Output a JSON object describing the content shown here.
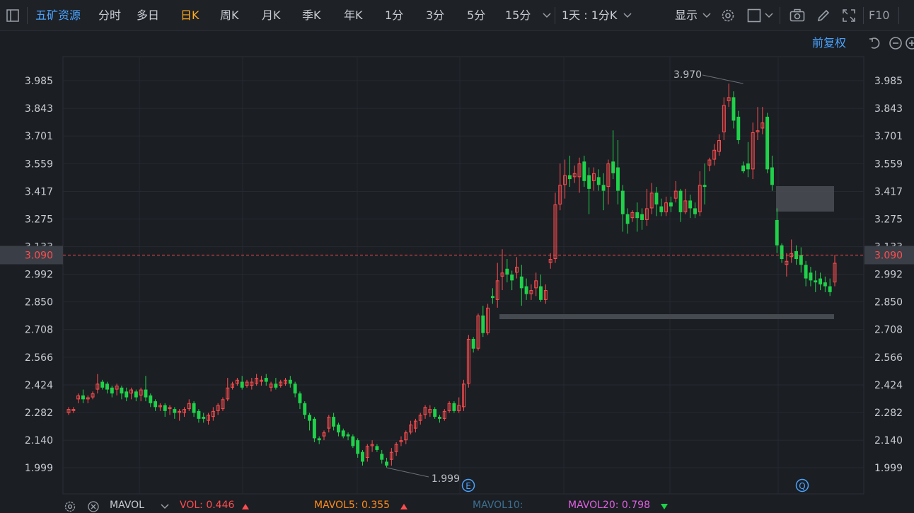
{
  "toolbar": {
    "stock_name": "五矿资源",
    "periods": [
      "分时",
      "多日",
      "日K",
      "周K",
      "月K",
      "季K",
      "年K",
      "1分",
      "3分",
      "5分",
      "15分"
    ],
    "active_period": "日K",
    "interval": "1天 : 1分K",
    "display_label": "显示",
    "f10_label": "F10"
  },
  "restore": {
    "label": "前复权"
  },
  "axis": {
    "ticks": [
      "3.985",
      "3.843",
      "3.701",
      "3.559",
      "3.417",
      "3.275",
      "3.133",
      "2.992",
      "2.850",
      "2.708",
      "2.566",
      "2.424",
      "2.282",
      "2.140",
      "1.999"
    ],
    "current_price": "3.090"
  },
  "annotations": {
    "high": "3.970",
    "low": "1.999",
    "event_e": "E",
    "event_q": "Q"
  },
  "footer": {
    "indicator": "MAVOL",
    "vol_label": "VOL: 0.446",
    "mavol5_label": "MAVOL5: 0.355",
    "mavol10_label": "MAVOL10:",
    "mavol20_label": "MAVOL20: 0.798"
  },
  "colors": {
    "up": "#ff4d4f",
    "down": "#1fd24a",
    "accent": "#ffab1f",
    "link": "#4aa3ff",
    "mavol5": "#ff8c1a",
    "mavol10": "#3d6f91",
    "mavol20": "#e060e0"
  },
  "chart_data": {
    "type": "candlestick",
    "ylim": [
      1.999,
      3.985
    ],
    "current_price": 3.09,
    "candles": [
      [
        2.28,
        2.3,
        2.27,
        2.31
      ],
      [
        2.29,
        2.3,
        2.28,
        2.31
      ],
      [
        2.35,
        2.37,
        2.33,
        2.38
      ],
      [
        2.37,
        2.35,
        2.33,
        2.4
      ],
      [
        2.35,
        2.36,
        2.33,
        2.37
      ],
      [
        2.36,
        2.38,
        2.35,
        2.39
      ],
      [
        2.4,
        2.43,
        2.38,
        2.48
      ],
      [
        2.44,
        2.41,
        2.4,
        2.45
      ],
      [
        2.43,
        2.4,
        2.38,
        2.44
      ],
      [
        2.41,
        2.38,
        2.36,
        2.42
      ],
      [
        2.4,
        2.42,
        2.37,
        2.43
      ],
      [
        2.41,
        2.38,
        2.35,
        2.42
      ],
      [
        2.39,
        2.36,
        2.34,
        2.41
      ],
      [
        2.38,
        2.4,
        2.35,
        2.41
      ],
      [
        2.39,
        2.36,
        2.34,
        2.4
      ],
      [
        2.37,
        2.4,
        2.34,
        2.41
      ],
      [
        2.4,
        2.36,
        2.34,
        2.47
      ],
      [
        2.37,
        2.33,
        2.31,
        2.38
      ],
      [
        2.34,
        2.31,
        2.29,
        2.35
      ],
      [
        2.31,
        2.32,
        2.29,
        2.33
      ],
      [
        2.32,
        2.29,
        2.26,
        2.33
      ],
      [
        2.3,
        2.31,
        2.27,
        2.32
      ],
      [
        2.3,
        2.28,
        2.25,
        2.31
      ],
      [
        2.28,
        2.29,
        2.24,
        2.3
      ],
      [
        2.28,
        2.3,
        2.26,
        2.31
      ],
      [
        2.3,
        2.33,
        2.29,
        2.35
      ],
      [
        2.33,
        2.28,
        2.26,
        2.34
      ],
      [
        2.29,
        2.25,
        2.23,
        2.3
      ],
      [
        2.26,
        2.25,
        2.23,
        2.28
      ],
      [
        2.24,
        2.27,
        2.22,
        2.28
      ],
      [
        2.26,
        2.29,
        2.24,
        2.31
      ],
      [
        2.29,
        2.32,
        2.27,
        2.33
      ],
      [
        2.3,
        2.35,
        2.29,
        2.36
      ],
      [
        2.35,
        2.41,
        2.34,
        2.46
      ],
      [
        2.41,
        2.43,
        2.4,
        2.44
      ],
      [
        2.43,
        2.45,
        2.42,
        2.46
      ],
      [
        2.44,
        2.41,
        2.4,
        2.47
      ],
      [
        2.42,
        2.44,
        2.41,
        2.45
      ],
      [
        2.42,
        2.44,
        2.4,
        2.46
      ],
      [
        2.43,
        2.46,
        2.42,
        2.48
      ],
      [
        2.44,
        2.45,
        2.42,
        2.47
      ],
      [
        2.46,
        2.44,
        2.42,
        2.48
      ],
      [
        2.41,
        2.43,
        2.39,
        2.44
      ],
      [
        2.43,
        2.41,
        2.4,
        2.46
      ],
      [
        2.42,
        2.44,
        2.41,
        2.45
      ],
      [
        2.43,
        2.45,
        2.42,
        2.46
      ],
      [
        2.45,
        2.43,
        2.41,
        2.47
      ],
      [
        2.43,
        2.38,
        2.36,
        2.44
      ],
      [
        2.38,
        2.33,
        2.3,
        2.39
      ],
      [
        2.33,
        2.27,
        2.25,
        2.34
      ],
      [
        2.27,
        2.24,
        2.19,
        2.28
      ],
      [
        2.25,
        2.15,
        2.13,
        2.26
      ],
      [
        2.15,
        2.14,
        2.12,
        2.16
      ],
      [
        2.16,
        2.18,
        2.14,
        2.19
      ],
      [
        2.2,
        2.26,
        2.18,
        2.27
      ],
      [
        2.26,
        2.21,
        2.19,
        2.28
      ],
      [
        2.22,
        2.18,
        2.16,
        2.23
      ],
      [
        2.19,
        2.16,
        2.15,
        2.2
      ],
      [
        2.17,
        2.16,
        2.14,
        2.18
      ],
      [
        2.16,
        2.11,
        2.1,
        2.17
      ],
      [
        2.14,
        2.07,
        2.05,
        2.15
      ],
      [
        2.08,
        2.03,
        2.01,
        2.09
      ],
      [
        2.05,
        2.11,
        2.03,
        2.12
      ],
      [
        2.11,
        2.12,
        2.08,
        2.14
      ],
      [
        2.11,
        2.09,
        2.08,
        2.12
      ],
      [
        2.07,
        2.04,
        2.02,
        2.09
      ],
      [
        2.03,
        2.01,
        2.0,
        2.05
      ],
      [
        2.04,
        2.08,
        2.01,
        2.1
      ],
      [
        2.08,
        2.12,
        2.06,
        2.13
      ],
      [
        2.13,
        2.14,
        2.11,
        2.16
      ],
      [
        2.14,
        2.18,
        2.12,
        2.19
      ],
      [
        2.18,
        2.22,
        2.17,
        2.24
      ],
      [
        2.2,
        2.24,
        2.18,
        2.25
      ],
      [
        2.24,
        2.27,
        2.22,
        2.28
      ],
      [
        2.27,
        2.31,
        2.25,
        2.32
      ],
      [
        2.28,
        2.3,
        2.26,
        2.32
      ],
      [
        2.3,
        2.26,
        2.25,
        2.31
      ],
      [
        2.26,
        2.25,
        2.23,
        2.27
      ],
      [
        2.25,
        2.29,
        2.24,
        2.3
      ],
      [
        2.29,
        2.33,
        2.28,
        2.34
      ],
      [
        2.33,
        2.29,
        2.28,
        2.34
      ],
      [
        2.29,
        2.32,
        2.28,
        2.36
      ],
      [
        2.31,
        2.43,
        2.29,
        2.45
      ],
      [
        2.43,
        2.66,
        2.41,
        2.68
      ],
      [
        2.66,
        2.61,
        2.59,
        2.67
      ],
      [
        2.61,
        2.78,
        2.6,
        2.79
      ],
      [
        2.78,
        2.69,
        2.67,
        2.83
      ],
      [
        2.69,
        2.82,
        2.68,
        2.84
      ],
      [
        2.88,
        2.87,
        2.84,
        2.92
      ],
      [
        2.86,
        2.96,
        2.82,
        3.05
      ],
      [
        2.98,
        3.0,
        2.91,
        3.12
      ],
      [
        3.02,
        2.99,
        2.95,
        3.07
      ],
      [
        2.99,
        2.96,
        2.91,
        3.01
      ],
      [
        3.0,
        3.03,
        2.97,
        3.08
      ],
      [
        2.98,
        2.92,
        2.83,
        3.04
      ],
      [
        2.93,
        2.89,
        2.86,
        2.97
      ],
      [
        2.89,
        2.91,
        2.86,
        2.94
      ],
      [
        2.92,
        2.96,
        2.88,
        3.0
      ],
      [
        2.93,
        2.86,
        2.85,
        2.99
      ],
      [
        2.86,
        2.91,
        2.84,
        2.94
      ],
      [
        3.05,
        3.07,
        3.02,
        3.1
      ],
      [
        3.07,
        3.35,
        3.05,
        3.41
      ],
      [
        3.35,
        3.45,
        3.32,
        3.56
      ],
      [
        3.45,
        3.5,
        3.38,
        3.58
      ],
      [
        3.5,
        3.48,
        3.44,
        3.6
      ],
      [
        3.49,
        3.51,
        3.46,
        3.55
      ],
      [
        3.49,
        3.56,
        3.41,
        3.59
      ],
      [
        3.57,
        3.47,
        3.44,
        3.6
      ],
      [
        3.5,
        3.43,
        3.3,
        3.54
      ],
      [
        3.47,
        3.51,
        3.42,
        3.54
      ],
      [
        3.49,
        3.45,
        3.42,
        3.53
      ],
      [
        3.45,
        3.42,
        3.32,
        3.51
      ],
      [
        3.44,
        3.56,
        3.35,
        3.58
      ],
      [
        3.57,
        3.51,
        3.48,
        3.73
      ],
      [
        3.54,
        3.42,
        3.35,
        3.68
      ],
      [
        3.42,
        3.3,
        3.21,
        3.45
      ],
      [
        3.3,
        3.25,
        3.2,
        3.33
      ],
      [
        3.28,
        3.31,
        3.26,
        3.32
      ],
      [
        3.31,
        3.28,
        3.21,
        3.36
      ],
      [
        3.3,
        3.27,
        3.22,
        3.33
      ],
      [
        3.27,
        3.33,
        3.24,
        3.43
      ],
      [
        3.33,
        3.41,
        3.3,
        3.46
      ],
      [
        3.41,
        3.35,
        3.29,
        3.44
      ],
      [
        3.34,
        3.31,
        3.29,
        3.38
      ],
      [
        3.31,
        3.36,
        3.29,
        3.39
      ],
      [
        3.36,
        3.34,
        3.31,
        3.39
      ],
      [
        3.38,
        3.42,
        3.36,
        3.47
      ],
      [
        3.42,
        3.31,
        3.26,
        3.43
      ],
      [
        3.31,
        3.37,
        3.3,
        3.43
      ],
      [
        3.37,
        3.33,
        3.28,
        3.4
      ],
      [
        3.33,
        3.3,
        3.28,
        3.36
      ],
      [
        3.31,
        3.45,
        3.29,
        3.52
      ],
      [
        3.45,
        3.44,
        3.35,
        3.56
      ],
      [
        3.55,
        3.58,
        3.52,
        3.59
      ],
      [
        3.58,
        3.63,
        3.55,
        3.66
      ],
      [
        3.62,
        3.68,
        3.6,
        3.71
      ],
      [
        3.72,
        3.86,
        3.68,
        3.9
      ],
      [
        3.88,
        3.9,
        3.85,
        3.97
      ],
      [
        3.9,
        3.78,
        3.74,
        3.93
      ],
      [
        3.8,
        3.68,
        3.66,
        3.83
      ],
      [
        3.55,
        3.52,
        3.51,
        3.57
      ],
      [
        3.56,
        3.53,
        3.49,
        3.67
      ],
      [
        3.53,
        3.72,
        3.48,
        3.77
      ],
      [
        3.72,
        3.73,
        3.68,
        3.85
      ],
      [
        3.74,
        3.77,
        3.71,
        3.85
      ],
      [
        3.8,
        3.53,
        3.51,
        3.82
      ],
      [
        3.54,
        3.45,
        3.42,
        3.6
      ],
      [
        3.27,
        3.14,
        3.1,
        3.33
      ],
      [
        3.14,
        3.07,
        3.05,
        3.15
      ],
      [
        3.04,
        3.06,
        2.98,
        3.1
      ],
      [
        3.08,
        3.1,
        3.05,
        3.17
      ],
      [
        3.11,
        3.07,
        3.04,
        3.14
      ],
      [
        3.09,
        3.04,
        3.0,
        3.13
      ],
      [
        3.04,
        2.97,
        2.93,
        3.06
      ],
      [
        3.0,
        2.96,
        2.93,
        3.03
      ],
      [
        2.96,
        2.95,
        2.9,
        3.01
      ],
      [
        2.97,
        2.94,
        2.91,
        3.0
      ],
      [
        2.95,
        2.93,
        2.9,
        2.98
      ],
      [
        2.93,
        2.9,
        2.88,
        2.97
      ],
      [
        2.95,
        3.05,
        2.93,
        3.09
      ]
    ]
  }
}
